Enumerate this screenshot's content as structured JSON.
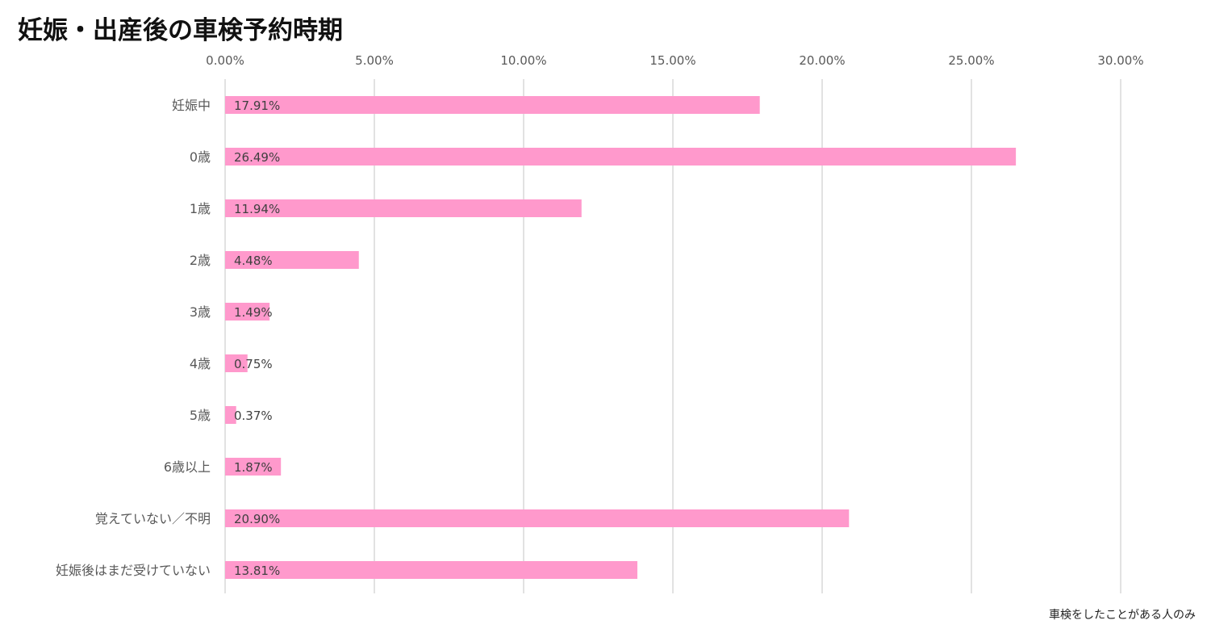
{
  "chart_data": {
    "type": "bar",
    "orientation": "horizontal",
    "title": "妊娠・出産後の車検予約時期",
    "categories": [
      "妊娠中",
      "0歳",
      "1歳",
      "2歳",
      "3歳",
      "4歳",
      "5歳",
      "6歳以上",
      "覚えていない／不明",
      "妊娠後はまだ受けていない"
    ],
    "values": [
      17.91,
      26.49,
      11.94,
      4.48,
      1.49,
      0.75,
      0.37,
      1.87,
      20.9,
      13.81
    ],
    "data_labels": [
      "17.91%",
      "26.49%",
      "11.94%",
      "4.48%",
      "1.49%",
      "0.75%",
      "0.37%",
      "1.87%",
      "20.90%",
      "13.81%"
    ],
    "x_ticks": [
      0,
      5,
      10,
      15,
      20,
      25,
      30
    ],
    "x_tick_labels": [
      "0.00%",
      "5.00%",
      "10.00%",
      "15.00%",
      "20.00%",
      "25.00%",
      "30.00%"
    ],
    "xlim": [
      0,
      30
    ],
    "x_axis_position": "top",
    "grid": true,
    "legend": "none",
    "bar_color": "#FF99CC",
    "grid_color": "#D9D9D9",
    "label_color": "#595959"
  },
  "footnote": "車検をしたことがある人のみ"
}
